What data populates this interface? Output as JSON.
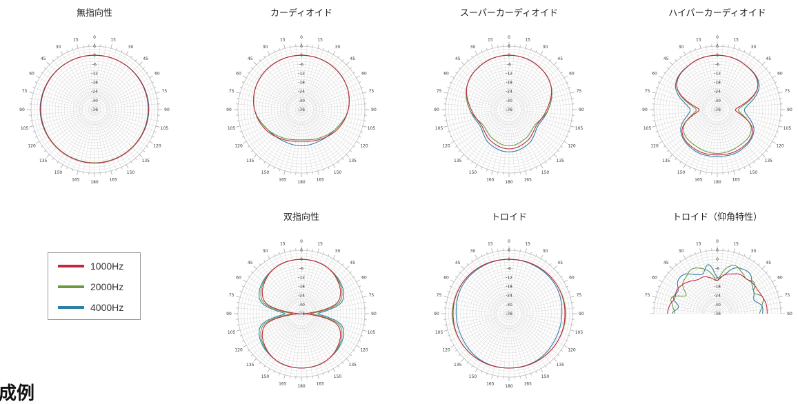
{
  "chart_data": [
    {
      "type": "polar",
      "title": "無指向性",
      "angle_ticks": [
        "0",
        "15",
        "30",
        "45",
        "60",
        "75",
        "90",
        "105",
        "120",
        "135",
        "150",
        "165",
        "180",
        "165",
        "150",
        "135",
        "120",
        "105",
        "90",
        "75",
        "60",
        "45",
        "30",
        "15"
      ],
      "radial_ticks": [
        "6",
        "0",
        "-6",
        "-12",
        "-18",
        "-24",
        "-30",
        "-36"
      ],
      "rlim": [
        -36,
        6
      ],
      "series": [
        {
          "name": "1000Hz",
          "theta": [
            0,
            30,
            60,
            90,
            120,
            150,
            180,
            210,
            240,
            270,
            300,
            330
          ],
          "r": [
            0,
            0,
            -0.2,
            -0.3,
            -0.5,
            -0.6,
            -0.6,
            -0.6,
            -0.5,
            -0.3,
            -0.2,
            0
          ]
        },
        {
          "name": "2000Hz",
          "theta": [
            0,
            30,
            60,
            90,
            120,
            150,
            180,
            210,
            240,
            270,
            300,
            330
          ],
          "r": [
            0,
            0,
            -0.3,
            -0.5,
            -0.7,
            -0.8,
            -0.8,
            -0.8,
            -0.7,
            -0.5,
            -0.3,
            0
          ]
        },
        {
          "name": "4000Hz",
          "theta": [
            0,
            30,
            60,
            90,
            120,
            150,
            180,
            210,
            240,
            270,
            300,
            330
          ],
          "r": [
            0,
            0,
            0,
            0,
            -0.4,
            -0.8,
            -0.8,
            -0.8,
            -0.4,
            0,
            0,
            0
          ]
        }
      ]
    },
    {
      "type": "polar",
      "title": "カーディオイド",
      "angle_ticks": [
        "0",
        "15",
        "30",
        "45",
        "60",
        "75",
        "90",
        "105",
        "120",
        "135",
        "150",
        "165",
        "180",
        "165",
        "150",
        "135",
        "120",
        "105",
        "90",
        "75",
        "60",
        "45",
        "30",
        "15"
      ],
      "radial_ticks": [
        "6",
        "0",
        "-6",
        "-12",
        "-18",
        "-24",
        "-30",
        "-36"
      ],
      "rlim": [
        -36,
        6
      ],
      "series": [
        {
          "name": "1000Hz",
          "theta": [
            0,
            30,
            60,
            90,
            120,
            150,
            180,
            210,
            240,
            270,
            300,
            330
          ],
          "r": [
            0,
            -0.5,
            -2,
            -5,
            -9,
            -13,
            -15,
            -13,
            -9,
            -5,
            -2,
            -0.5
          ]
        },
        {
          "name": "2000Hz",
          "theta": [
            0,
            30,
            60,
            90,
            120,
            150,
            180,
            210,
            240,
            270,
            300,
            330
          ],
          "r": [
            0,
            -0.5,
            -2,
            -5,
            -10,
            -14,
            -16,
            -14,
            -10,
            -5,
            -2,
            -0.5
          ]
        },
        {
          "name": "4000Hz",
          "theta": [
            0,
            30,
            60,
            90,
            120,
            150,
            180,
            210,
            240,
            270,
            300,
            330
          ],
          "r": [
            0,
            -0.5,
            -2,
            -5,
            -10,
            -12,
            -12,
            -12,
            -10,
            -5,
            -2,
            -0.5
          ]
        }
      ]
    },
    {
      "type": "polar",
      "title": "スーパーカーディオイド",
      "angle_ticks": [
        "0",
        "15",
        "30",
        "45",
        "60",
        "75",
        "90",
        "105",
        "120",
        "135",
        "150",
        "165",
        "180",
        "165",
        "150",
        "135",
        "120",
        "105",
        "90",
        "75",
        "60",
        "45",
        "30",
        "15"
      ],
      "radial_ticks": [
        "6",
        "0",
        "-6",
        "-12",
        "-18",
        "-24",
        "-30",
        "-36"
      ],
      "rlim": [
        -36,
        6
      ],
      "series": [
        {
          "name": "1000Hz",
          "theta": [
            0,
            30,
            60,
            90,
            120,
            150,
            180,
            210,
            240,
            270,
            300,
            330
          ],
          "r": [
            0,
            -1,
            -4,
            -11,
            -15,
            -12,
            -10,
            -12,
            -15,
            -11,
            -4,
            -1
          ]
        },
        {
          "name": "2000Hz",
          "theta": [
            0,
            30,
            60,
            90,
            120,
            150,
            180,
            210,
            240,
            270,
            300,
            330
          ],
          "r": [
            0,
            -1,
            -4,
            -10,
            -16,
            -14,
            -12,
            -14,
            -16,
            -10,
            -4,
            -1
          ]
        },
        {
          "name": "4000Hz",
          "theta": [
            0,
            30,
            60,
            90,
            120,
            150,
            180,
            210,
            240,
            270,
            300,
            330
          ],
          "r": [
            0,
            -1,
            -4,
            -10,
            -14,
            -10,
            -8,
            -10,
            -14,
            -10,
            -4,
            -1
          ]
        }
      ]
    },
    {
      "type": "polar",
      "title": "ハイパーカーディオイド",
      "angle_ticks": [
        "0",
        "15",
        "30",
        "45",
        "60",
        "75",
        "90",
        "105",
        "120",
        "135",
        "150",
        "165",
        "180",
        "165",
        "150",
        "135",
        "120",
        "105",
        "90",
        "75",
        "60",
        "45",
        "30",
        "15"
      ],
      "radial_ticks": [
        "6",
        "0",
        "-6",
        "-12",
        "-18",
        "-24",
        "-30",
        "-36"
      ],
      "rlim": [
        -36,
        6
      ],
      "series": [
        {
          "name": "1000Hz",
          "theta": [
            0,
            30,
            60,
            90,
            120,
            150,
            180,
            210,
            240,
            270,
            300,
            330
          ],
          "r": [
            0,
            -1,
            -5,
            -24,
            -9,
            -6,
            -6,
            -6,
            -9,
            -24,
            -5,
            -1
          ]
        },
        {
          "name": "2000Hz",
          "theta": [
            0,
            30,
            60,
            90,
            120,
            150,
            180,
            210,
            240,
            270,
            300,
            330
          ],
          "r": [
            0,
            -1,
            -5,
            -22,
            -10,
            -8,
            -7,
            -8,
            -10,
            -22,
            -5,
            -1
          ]
        },
        {
          "name": "4000Hz",
          "theta": [
            0,
            30,
            60,
            90,
            120,
            150,
            180,
            210,
            240,
            270,
            300,
            330
          ],
          "r": [
            0,
            -1,
            -4,
            -18,
            -8,
            -5,
            -5,
            -5,
            -8,
            -18,
            -4,
            -1
          ]
        }
      ]
    },
    {
      "type": "polar",
      "title": "双指向性",
      "angle_ticks": [
        "0",
        "15",
        "30",
        "45",
        "60",
        "75",
        "90",
        "105",
        "120",
        "135",
        "150",
        "165",
        "180",
        "165",
        "150",
        "135",
        "120",
        "105",
        "90",
        "75",
        "60",
        "45",
        "30",
        "15"
      ],
      "radial_ticks": [
        "6",
        "0",
        "-6",
        "-12",
        "-18",
        "-24",
        "-30",
        "-36"
      ],
      "rlim": [
        -36,
        6
      ],
      "series": [
        {
          "name": "1000Hz",
          "theta": [
            0,
            30,
            60,
            75,
            90,
            105,
            120,
            150,
            180,
            210,
            240,
            255,
            270,
            285,
            300,
            330
          ],
          "r": [
            0,
            -1,
            -6,
            -13,
            -35,
            -13,
            -6,
            -1,
            0,
            -1,
            -6,
            -13,
            -35,
            -13,
            -6,
            -1
          ]
        },
        {
          "name": "2000Hz",
          "theta": [
            0,
            30,
            60,
            75,
            90,
            105,
            120,
            150,
            180,
            210,
            240,
            255,
            270,
            285,
            300,
            330
          ],
          "r": [
            0,
            -1,
            -5,
            -11,
            -30,
            -11,
            -5,
            -1,
            0,
            -1,
            -5,
            -11,
            -30,
            -11,
            -5,
            -1
          ]
        },
        {
          "name": "4000Hz",
          "theta": [
            0,
            30,
            60,
            75,
            90,
            105,
            120,
            150,
            180,
            210,
            240,
            255,
            270,
            285,
            300,
            330
          ],
          "r": [
            0,
            -1,
            -4,
            -9,
            -25,
            -9,
            -4,
            -1,
            0,
            -1,
            -4,
            -9,
            -25,
            -9,
            -4,
            -1
          ]
        }
      ]
    },
    {
      "type": "polar",
      "title": "トロイド",
      "angle_ticks": [
        "0",
        "15",
        "30",
        "45",
        "60",
        "75",
        "90",
        "105",
        "120",
        "135",
        "150",
        "165",
        "180",
        "165",
        "150",
        "135",
        "120",
        "105",
        "90",
        "75",
        "60",
        "45",
        "30",
        "15"
      ],
      "radial_ticks": [
        "6",
        "0",
        "-6",
        "-12",
        "-18",
        "-24",
        "-30",
        "-36"
      ],
      "rlim": [
        -36,
        6
      ],
      "series": [
        {
          "name": "1000Hz",
          "theta": [
            0,
            30,
            60,
            90,
            120,
            150,
            180,
            210,
            240,
            270,
            300,
            330
          ],
          "r": [
            0,
            0.5,
            1,
            1,
            1,
            0.5,
            0,
            0.5,
            1,
            1,
            1,
            0.5
          ]
        },
        {
          "name": "2000Hz",
          "theta": [
            0,
            30,
            60,
            90,
            120,
            150,
            180,
            210,
            240,
            270,
            300,
            330
          ],
          "r": [
            0,
            0.5,
            1,
            1.5,
            1,
            0.5,
            0,
            0.5,
            1,
            1.5,
            1,
            0.5
          ]
        },
        {
          "name": "4000Hz",
          "theta": [
            0,
            30,
            60,
            90,
            120,
            150,
            180,
            210,
            240,
            270,
            300,
            330
          ],
          "r": [
            0,
            0,
            0,
            -1,
            -1,
            0,
            0,
            0,
            -1,
            -1,
            0,
            0
          ]
        }
      ]
    },
    {
      "type": "polar",
      "title": "トロイド（仰角特性）",
      "angle_ticks": [
        "0",
        "15",
        "30",
        "45",
        "60",
        "75",
        "90",
        "75",
        "60",
        "45",
        "30",
        "15"
      ],
      "radial_ticks": [
        "6",
        "0",
        "-6",
        "-12",
        "-18",
        "-24",
        "-30",
        "-36"
      ],
      "rlim": [
        -36,
        6
      ],
      "series": [
        {
          "name": "1000Hz",
          "theta": [
            -90,
            -80,
            -70,
            -60,
            -50,
            -40,
            -30,
            -20,
            -10,
            0,
            10,
            20,
            30,
            40,
            50,
            60,
            70,
            80,
            90
          ],
          "r": [
            -3,
            -4,
            -6,
            -5,
            -6,
            -8,
            -10,
            -10,
            -12,
            -14,
            -10,
            -8,
            -6,
            -6,
            -5,
            -5,
            -4,
            -3,
            -3
          ]
        },
        {
          "name": "2000Hz",
          "theta": [
            -90,
            -80,
            -70,
            -60,
            -50,
            -40,
            -30,
            -20,
            -10,
            0,
            10,
            20,
            30,
            40,
            50,
            60,
            70,
            80,
            90
          ],
          "r": [
            -8,
            -6,
            -4,
            -12,
            -6,
            -4,
            -2,
            -4,
            -8,
            -14,
            -6,
            -2,
            -4,
            -6,
            -4,
            -8,
            -4,
            -6,
            -8
          ]
        },
        {
          "name": "4000Hz",
          "theta": [
            -90,
            -80,
            -70,
            -60,
            -50,
            -40,
            -30,
            -20,
            -10,
            0,
            10,
            20,
            30,
            40,
            50,
            60,
            70,
            80,
            90
          ],
          "r": [
            -6,
            -10,
            -5,
            -6,
            -2,
            -2,
            -6,
            -8,
            -3,
            -12,
            -10,
            -4,
            -2,
            -2,
            -6,
            -8,
            -10,
            -6,
            -6
          ]
        }
      ]
    }
  ],
  "colors": {
    "1000Hz": "#c1283e",
    "2000Hz": "#6b9a3f",
    "4000Hz": "#2f7ea6"
  },
  "legend": [
    {
      "label": "1000Hz",
      "color": "#c1283e"
    },
    {
      "label": "2000Hz",
      "color": "#6b9a3f"
    },
    {
      "label": "4000Hz",
      "color": "#2f7ea6"
    }
  ],
  "section_heading": "成例"
}
